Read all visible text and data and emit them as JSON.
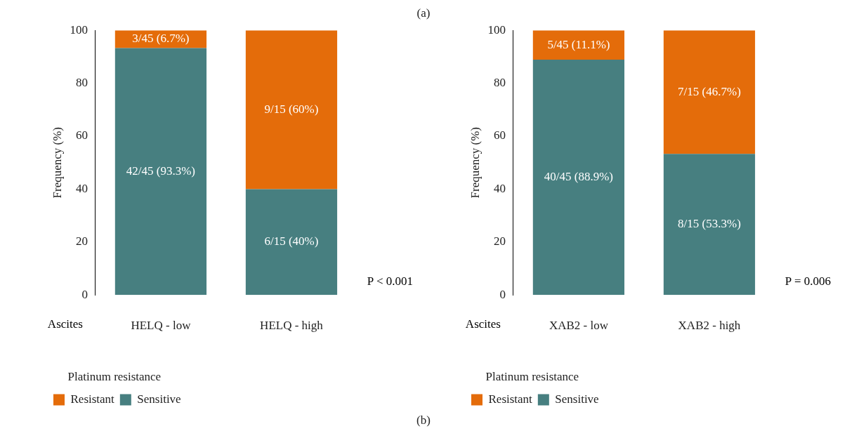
{
  "chart_data": [
    {
      "type": "bar",
      "stacked": true,
      "categories": [
        "HELQ - low",
        "HELQ - high"
      ],
      "xlabel": "Ascites",
      "ylabel": "Frequency (%)",
      "legend_title": "Platinum resistance",
      "legend": "bottom left",
      "ylim": [
        0,
        100
      ],
      "yticks": [
        0,
        20,
        40,
        60,
        80,
        100
      ],
      "grid": false,
      "series": [
        {
          "name": "Sensitive",
          "color": "#477f80",
          "values": [
            93.3,
            40
          ],
          "value_labels": [
            "42/45 (93.3%)",
            "6/15 (40%)"
          ]
        },
        {
          "name": "Resistant",
          "color": "#e46c0a",
          "values": [
            6.7,
            60
          ],
          "value_labels": [
            "3/45 (6.7%)",
            "9/15 (60%)"
          ]
        }
      ],
      "annotations": [
        "(a)",
        "P < 0.001"
      ]
    },
    {
      "type": "bar",
      "stacked": true,
      "categories": [
        "XAB2 - low",
        "XAB2 - high"
      ],
      "xlabel": "Ascites",
      "ylabel": "Frequency (%)",
      "legend_title": "Platinum resistance",
      "legend": "bottom left",
      "ylim": [
        0,
        100
      ],
      "yticks": [
        0,
        20,
        40,
        60,
        80,
        100
      ],
      "grid": false,
      "series": [
        {
          "name": "Sensitive",
          "color": "#477f80",
          "values": [
            88.9,
            53.3
          ],
          "value_labels": [
            "40/45 (88.9%)",
            "8/15 (53.3%)"
          ]
        },
        {
          "name": "Resistant",
          "color": "#e46c0a",
          "values": [
            11.1,
            46.7
          ],
          "value_labels": [
            "5/45 (11.1%)",
            "7/15 (46.7%)"
          ]
        }
      ],
      "annotations": [
        "P = 0.006",
        "(b)"
      ]
    }
  ]
}
